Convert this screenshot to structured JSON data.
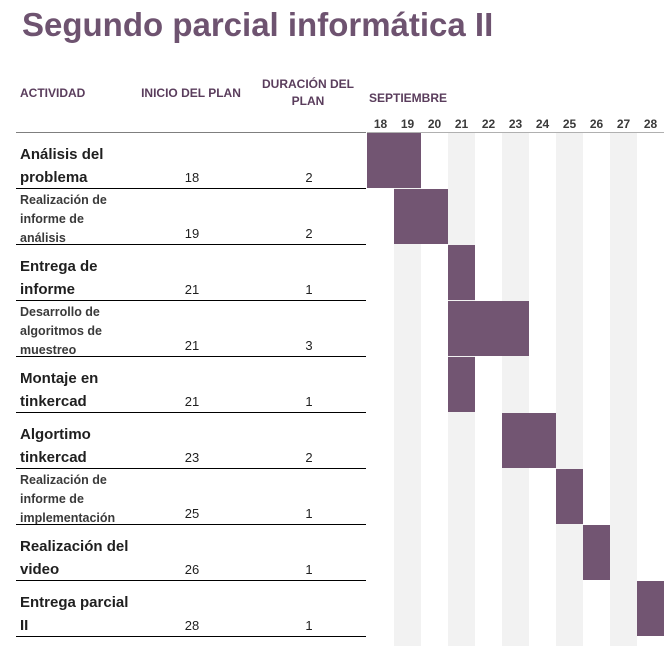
{
  "title": "Segundo parcial informática II",
  "headers": {
    "activity": "ACTIVIDAD",
    "start": "INICIO DEL PLAN",
    "duration": "DURACIÓN DEL PLAN",
    "month": "SEPTIEMBRE"
  },
  "colors": {
    "title": "#6e5370",
    "bar": "#725572",
    "stripe": "#f2f2f2"
  },
  "chart_data": {
    "type": "bar",
    "subtype": "gantt",
    "title": "Segundo parcial informática II",
    "days": [
      "18",
      "19",
      "20",
      "21",
      "22",
      "23",
      "24",
      "25",
      "26",
      "27",
      "28"
    ],
    "tasks": [
      {
        "name": "Análisis del problema",
        "start": 18,
        "duration": 2
      },
      {
        "name": "Realización de informe de análisis",
        "start": 19,
        "duration": 2
      },
      {
        "name": "Entrega de informe",
        "start": 21,
        "duration": 1
      },
      {
        "name": "Desarrollo de algoritmos de muestreo",
        "start": 21,
        "duration": 3
      },
      {
        "name": "Montaje en tinkercad",
        "start": 21,
        "duration": 1
      },
      {
        "name": "Algortimo tinkercad",
        "start": 23,
        "duration": 2
      },
      {
        "name": "Realización de informe de implementación",
        "start": 25,
        "duration": 1
      },
      {
        "name": "Realización del video",
        "start": 26,
        "duration": 1
      },
      {
        "name": "Entrega parcial II",
        "start": 28,
        "duration": 1
      }
    ]
  }
}
